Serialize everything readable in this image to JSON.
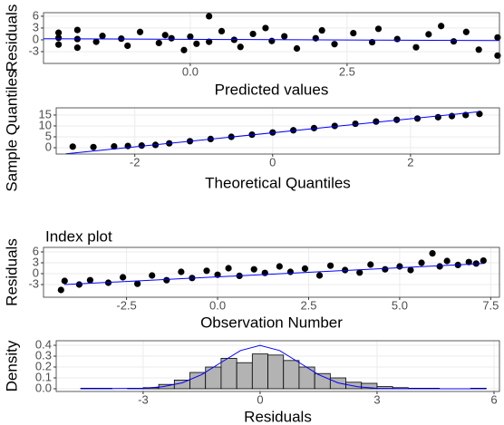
{
  "chart_data": [
    {
      "type": "scatter",
      "ylabel": "Residuals",
      "xlabel": "Predicted values",
      "color": "#000000",
      "grid": true,
      "xlim": [
        -2.34,
        4.93
      ],
      "ylim": [
        -6,
        6.9
      ],
      "xticks": [
        {
          "value": 0,
          "label": "0.0"
        },
        2.5
      ],
      "yticks": [
        -3,
        0,
        3,
        6
      ],
      "x": [
        -2.1,
        -2.1,
        -2.1,
        -1.8,
        -1.8,
        -1.8,
        -1.5,
        -1.4,
        -1.1,
        -1.0,
        -0.8,
        -0.5,
        -0.4,
        -0.3,
        -0.1,
        0.0,
        0.1,
        0.3,
        0.3,
        0.5,
        0.7,
        0.8,
        1.0,
        1.2,
        1.3,
        1.5,
        1.7,
        2.0,
        2.1,
        2.3,
        2.6,
        2.9,
        3.0,
        3.3,
        3.6,
        3.8,
        4.0,
        4.2,
        4.4,
        4.6,
        4.9,
        4.9
      ],
      "values": [
        0.5,
        -1.2,
        1.8,
        0.2,
        -2.0,
        2.5,
        -0.5,
        1.0,
        0.3,
        -1.5,
        2.0,
        -0.8,
        1.2,
        0.4,
        -2.6,
        0.8,
        -1.0,
        6.0,
        -0.5,
        2.2,
        0.0,
        -1.8,
        1.5,
        3.0,
        -0.3,
        0.9,
        -2.2,
        0.4,
        2.4,
        -1.1,
        1.7,
        -0.6,
        2.8,
        0.2,
        -1.9,
        1.4,
        3.5,
        -0.4,
        2.0,
        -2.5,
        0.6,
        -4.0
      ],
      "line": {
        "color": "#0000ff",
        "x": [
          -2.34,
          4.93
        ],
        "values": [
          0.3,
          -0.2
        ]
      }
    },
    {
      "type": "scatter",
      "ylabel": "Sample Quantiles",
      "xlabel": "Theoretical Quantiles",
      "color": "#000000",
      "grid": true,
      "xlim": [
        -3.14,
        3.29
      ],
      "ylim": [
        -2.9,
        18.3
      ],
      "xticks": [
        -2,
        0,
        2
      ],
      "yticks": [
        0,
        5,
        10,
        15
      ],
      "x": [
        -2.9,
        -2.6,
        -2.3,
        -2.1,
        -1.9,
        -1.7,
        -1.5,
        -1.2,
        -0.9,
        -0.6,
        -0.3,
        0,
        0.3,
        0.6,
        0.9,
        1.2,
        1.5,
        1.8,
        2.1,
        2.4,
        2.6,
        2.8,
        3.0
      ],
      "values": [
        0.5,
        0.3,
        0.6,
        0.8,
        1,
        1.3,
        2,
        3,
        4,
        5,
        6,
        7,
        8,
        9,
        10,
        11,
        12,
        12.8,
        13.4,
        14,
        14.5,
        15,
        15.5
      ],
      "line": {
        "color": "#0000ff",
        "x": [
          -3,
          3
        ],
        "values": [
          -2.8,
          16.5
        ]
      }
    },
    {
      "type": "scatter",
      "title": "Index plot",
      "ylabel": "Residuals",
      "xlabel": "Observation Number",
      "color": "#000000",
      "grid": true,
      "xlim": [
        -4.78,
        7.74
      ],
      "ylim": [
        -6.5,
        7.25
      ],
      "xticks": [
        -2.5,
        {
          "value": 0,
          "label": "0.0"
        },
        2.5,
        {
          "value": 5,
          "label": "5.0"
        },
        7.5
      ],
      "yticks": [
        -3,
        0,
        3,
        6
      ],
      "x": [
        -4.2,
        -3.8,
        -3.5,
        -3.0,
        -2.6,
        -2.2,
        -1.8,
        -1.4,
        -1.0,
        -0.7,
        -0.3,
        0.0,
        0.3,
        0.6,
        1.0,
        1.3,
        1.7,
        2.0,
        2.4,
        2.8,
        3.1,
        3.5,
        3.9,
        4.2,
        4.6,
        5.0,
        5.3,
        5.6,
        5.9,
        6.1,
        6.3,
        6.6,
        6.9,
        7.1,
        7.3,
        -4.3
      ],
      "values": [
        -2.0,
        -3.0,
        -1.8,
        -2.5,
        -1.0,
        -2.8,
        -0.5,
        -1.8,
        0.5,
        -1.2,
        0.8,
        -0.3,
        1.5,
        -0.6,
        1.2,
        0.2,
        2.0,
        0.5,
        1.4,
        -0.5,
        2.2,
        1.0,
        0.3,
        2.5,
        1.2,
        2.0,
        1.0,
        3.0,
        5.6,
        2.0,
        3.5,
        2.4,
        3.2,
        2.8,
        3.6,
        -4.5
      ],
      "line": {
        "color": "#0000ff",
        "x": [
          -4.2,
          7.3
        ],
        "values": [
          -3.0,
          2.8
        ]
      }
    },
    {
      "type": "histogram",
      "ylabel": "Density",
      "xlabel": "Residuals",
      "color": "#b3b3b3",
      "grid": true,
      "xlim": [
        -5.23,
        6.14
      ],
      "ylim": [
        -0.025,
        0.442
      ],
      "xticks": [
        -3,
        0,
        3,
        6
      ],
      "yticks": [
        {
          "value": 0,
          "label": "0.0"
        },
        0.1,
        0.2,
        0.3,
        0.4
      ],
      "bins": [
        -4.6,
        -4.2,
        -3.8,
        -3.4,
        -3.0,
        -2.6,
        -2.2,
        -1.8,
        -1.4,
        -1.0,
        -0.6,
        -0.2,
        0.2,
        0.6,
        1.0,
        1.4,
        1.8,
        2.2,
        2.6,
        3.0,
        3.4,
        3.8,
        4.2,
        4.6,
        5.0,
        5.4,
        5.8
      ],
      "values": [
        0.005,
        0.005,
        0,
        0.005,
        0.01,
        0.04,
        0.08,
        0.15,
        0.2,
        0.28,
        0.24,
        0.32,
        0.31,
        0.26,
        0.2,
        0.14,
        0.1,
        0.06,
        0.05,
        0.02,
        0.01,
        0.005,
        0.005,
        0,
        0,
        0.005
      ],
      "line": {
        "color": "#0000ff",
        "x": [
          -4.6,
          -3,
          -2.5,
          -2,
          -1.5,
          -1,
          -0.5,
          0,
          0.5,
          1,
          1.5,
          2,
          2.5,
          3,
          4,
          5.8
        ],
        "values": [
          0,
          0.004,
          0.018,
          0.054,
          0.13,
          0.242,
          0.352,
          0.399,
          0.352,
          0.242,
          0.13,
          0.054,
          0.018,
          0.004,
          0,
          0
        ]
      }
    }
  ]
}
